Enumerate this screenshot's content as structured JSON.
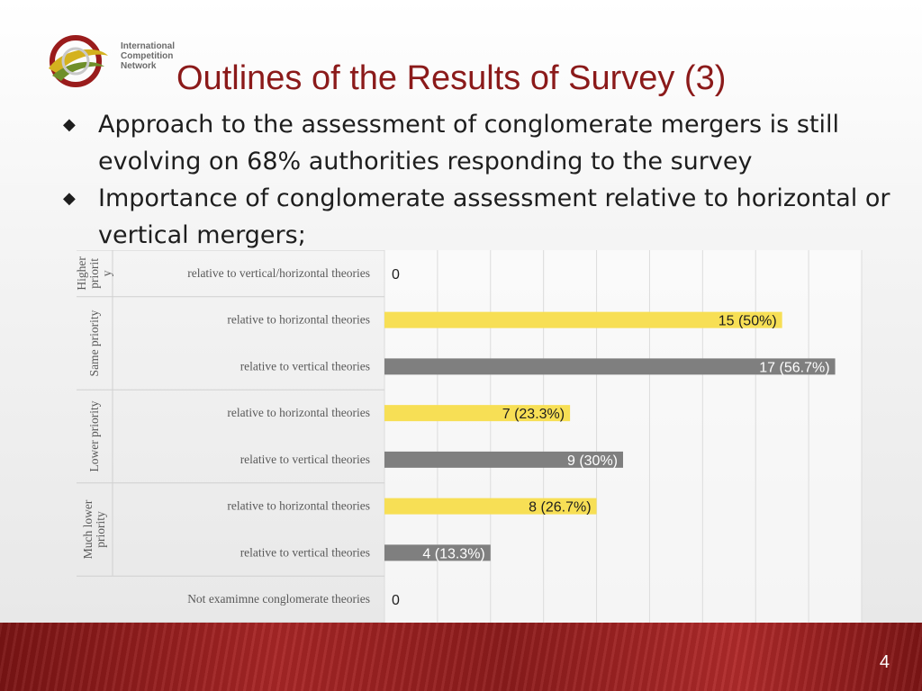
{
  "header": {
    "logo_lines": [
      "International",
      "Competition",
      "Network"
    ],
    "title": "Outlines of the Results of Survey (3)"
  },
  "bullets": [
    "Approach to the assessment of conglomerate mergers is still evolving on 68% authorities responding to the survey",
    "Importance of conglomerate assessment relative to horizontal or vertical mergers;"
  ],
  "bullet_glyph": "◆",
  "footer": {
    "page_number": "4"
  },
  "colors": {
    "title": "#8b1a1a",
    "horizontal": "#f7df55",
    "vertical": "#7f7f7f",
    "band": "#9a1f1f"
  },
  "chart_data": {
    "type": "bar",
    "orientation": "horizontal",
    "title": "",
    "xlim": [
      0,
      17
    ],
    "grid": true,
    "groups": [
      {
        "label": "Higher priority",
        "label_lines": [
          "Higher",
          "priorit",
          "y"
        ]
      },
      {
        "label": "Same priority",
        "label_lines": [
          "Same priority"
        ]
      },
      {
        "label": "Lower priority",
        "label_lines": [
          "Lower priority"
        ]
      },
      {
        "label": "Much lower priority",
        "label_lines": [
          "Much lower",
          "priority"
        ]
      }
    ],
    "rows": [
      {
        "group": 0,
        "category": "relative to vertical/horizontal theories",
        "value": 0,
        "label": "0",
        "kind": "none"
      },
      {
        "group": 1,
        "category": "relative to horizontal theories",
        "value": 15,
        "label": "15 (50%)",
        "kind": "horizontal"
      },
      {
        "group": 1,
        "category": "relative to vertical theories",
        "value": 17,
        "label": "17 (56.7%)",
        "kind": "vertical"
      },
      {
        "group": 2,
        "category": "relative to horizontal theories",
        "value": 7,
        "label": "7 (23.3%)",
        "kind": "horizontal"
      },
      {
        "group": 2,
        "category": "relative to vertical theories",
        "value": 9,
        "label": "9 (30%)",
        "kind": "vertical"
      },
      {
        "group": 3,
        "category": "relative to horizontal theories",
        "value": 8,
        "label": "8 (26.7%)",
        "kind": "horizontal"
      },
      {
        "group": 3,
        "category": "relative to vertical theories",
        "value": 4,
        "label": "4 (13.3%)",
        "kind": "vertical"
      },
      {
        "group": null,
        "category": "Not examimne conglomerate theories",
        "value": 0,
        "label": "0",
        "kind": "none"
      }
    ]
  }
}
